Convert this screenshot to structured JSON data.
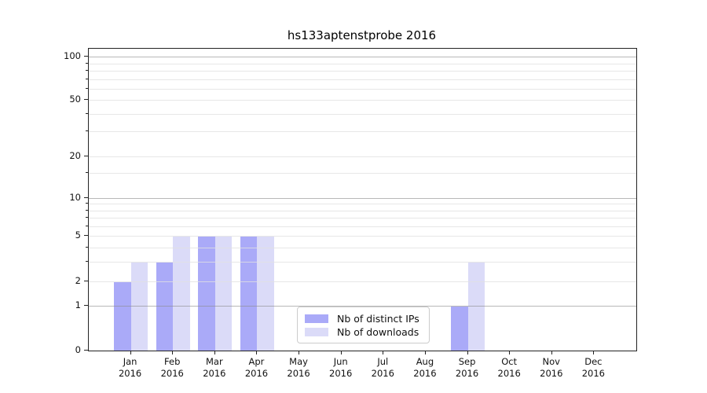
{
  "title": "hs133aptenstprobe 2016",
  "chart_data": {
    "type": "bar",
    "title": "hs133aptenstprobe 2016",
    "categories": [
      "Jan 2016",
      "Feb 2016",
      "Mar 2016",
      "Apr 2016",
      "May 2016",
      "Jun 2016",
      "Jul 2016",
      "Aug 2016",
      "Sep 2016",
      "Oct 2016",
      "Nov 2016",
      "Dec 2016"
    ],
    "series": [
      {
        "name": "Nb of distinct IPs",
        "color": "#aaaaf8",
        "values": [
          2,
          3,
          5,
          5,
          0,
          0,
          0,
          0,
          1,
          0,
          0,
          0
        ]
      },
      {
        "name": "Nb of downloads",
        "color": "#dbdbf8",
        "values": [
          3,
          5,
          5,
          5,
          0,
          0,
          0,
          0,
          3,
          0,
          0,
          0
        ]
      }
    ],
    "xlabel": "",
    "ylabel": "",
    "yscale": "log-like",
    "ytick_labels": [
      "0",
      "1",
      "2",
      "5",
      "10",
      "20",
      "50",
      "100"
    ],
    "ytick_values": [
      0,
      1,
      2,
      5,
      10,
      20,
      50,
      100
    ],
    "ylim": [
      0,
      100
    ],
    "grid": "major and minor horizontal",
    "legend_position": "lower center-right"
  },
  "legend": {
    "items": [
      {
        "label": "Nb of distinct IPs",
        "color": "#aaaaf8"
      },
      {
        "label": "Nb of downloads",
        "color": "#dbdbf8"
      }
    ]
  },
  "colors": {
    "background": "#ffffff",
    "bar_distinct_ips": "#aaaaf8",
    "bar_downloads": "#dbdbf8",
    "major_grid": "#b4b4b4",
    "minor_grid": "#ececec",
    "axis": "#222222",
    "text": "#111111"
  }
}
